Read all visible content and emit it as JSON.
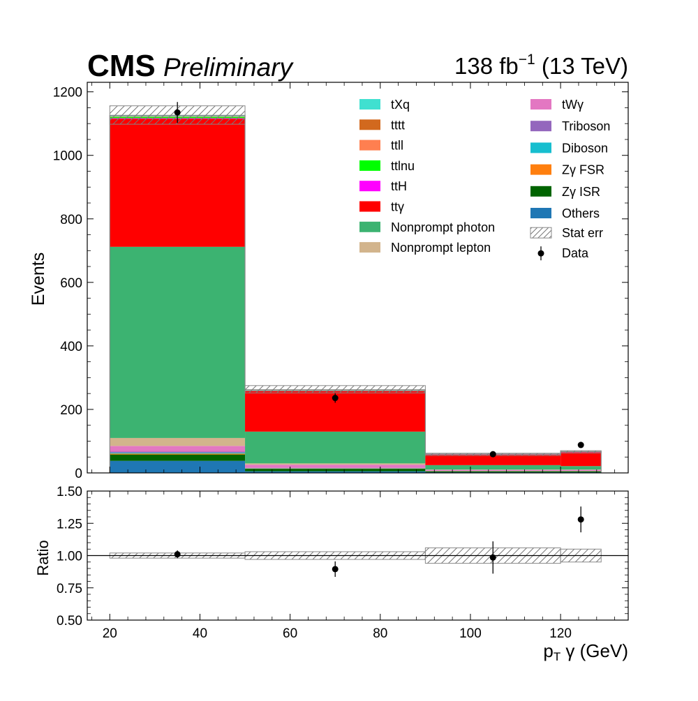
{
  "header": {
    "experiment": "CMS",
    "status": "Preliminary",
    "lumi_text": "138 fb",
    "lumi_exponent": "−1",
    "energy_text": " (13 TeV)"
  },
  "chart_data": [
    {
      "type": "bar",
      "stacked": true,
      "x_bin_edges": [
        20,
        50,
        90,
        120,
        129
      ],
      "xlim": [
        15,
        135
      ],
      "ylim": [
        0,
        1230
      ],
      "ylabel": "Events",
      "y_ticks": [
        "0",
        "200",
        "400",
        "600",
        "800",
        "1000",
        "1200"
      ],
      "y_tick_values": [
        0,
        200,
        400,
        600,
        800,
        1000,
        1200
      ],
      "series": [
        {
          "name": "Others",
          "color": "#1f77b4",
          "values": [
            38,
            5,
            2,
            2
          ]
        },
        {
          "name": "Zγ ISR",
          "color": "#006400",
          "values": [
            20,
            8,
            3,
            3
          ]
        },
        {
          "name": "Zγ FSR",
          "color": "#ff7f0e",
          "values": [
            3,
            1,
            0.5,
            0.5
          ]
        },
        {
          "name": "Diboson",
          "color": "#17becf",
          "values": [
            3,
            1,
            0.5,
            0.5
          ]
        },
        {
          "name": "Triboson",
          "color": "#9467bd",
          "values": [
            3,
            1,
            0.5,
            0.5
          ]
        },
        {
          "name": "tWγ",
          "color": "#e377c2",
          "values": [
            18,
            10,
            3,
            3
          ]
        },
        {
          "name": "Nonprompt lepton",
          "color": "#d2b48c",
          "values": [
            25,
            4,
            1,
            1
          ]
        },
        {
          "name": "Nonprompt photon",
          "color": "#3cb371",
          "values": [
            602,
            100,
            14,
            11
          ]
        },
        {
          "name": "ttγ",
          "color": "#ff0000",
          "values": [
            403,
            127,
            33,
            44
          ]
        },
        {
          "name": "ttH",
          "color": "#ff00ff",
          "values": [
            2,
            1,
            0.5,
            0.5
          ]
        },
        {
          "name": "ttlnu",
          "color": "#00ff00",
          "values": [
            4,
            1,
            0.5,
            0.5
          ]
        },
        {
          "name": "ttll",
          "color": "#ff7f50",
          "values": [
            1,
            0.5,
            0.2,
            0.2
          ]
        },
        {
          "name": "tttt",
          "color": "#d2691e",
          "values": [
            1,
            0.5,
            0.2,
            0.2
          ]
        },
        {
          "name": "tXq",
          "color": "#40e0d0",
          "values": [
            3,
            2,
            0.5,
            0.5
          ]
        }
      ],
      "stat_err": {
        "name": "Stat err",
        "up": [
          1156,
          275,
          62,
          70
        ],
        "down": [
          1098,
          252,
          55,
          63
        ]
      },
      "data": {
        "name": "Data",
        "x": [
          35,
          70,
          105,
          124.5
        ],
        "y": [
          1135,
          236,
          59,
          88
        ],
        "err": [
          33,
          15,
          7.7,
          9.4
        ]
      },
      "legend_position": "top-right"
    },
    {
      "type": "scatter",
      "xlabel_main": "p",
      "xlabel_sub": "T",
      "xlabel_rest": " γ (GeV)",
      "ylabel": "Ratio",
      "xlim": [
        15,
        135
      ],
      "ylim": [
        0.5,
        1.5
      ],
      "x_ticks": [
        "20",
        "40",
        "60",
        "80",
        "100",
        "120"
      ],
      "x_tick_values": [
        20,
        40,
        60,
        80,
        100,
        120
      ],
      "y_ticks": [
        "0.50",
        "0.75",
        "1.00",
        "1.25",
        "1.50"
      ],
      "y_tick_values": [
        0.5,
        0.75,
        1.0,
        1.25,
        1.5
      ],
      "reference_line": 1.0,
      "band_edges": [
        20,
        50,
        90,
        120,
        129
      ],
      "band_up": [
        1.02,
        1.03,
        1.06,
        1.05
      ],
      "band_down": [
        0.98,
        0.97,
        0.94,
        0.95
      ],
      "points": {
        "x": [
          35,
          70,
          105,
          124.5
        ],
        "y": [
          1.01,
          0.895,
          0.985,
          1.28
        ],
        "err": [
          0.03,
          0.06,
          0.125,
          0.1
        ]
      }
    }
  ]
}
